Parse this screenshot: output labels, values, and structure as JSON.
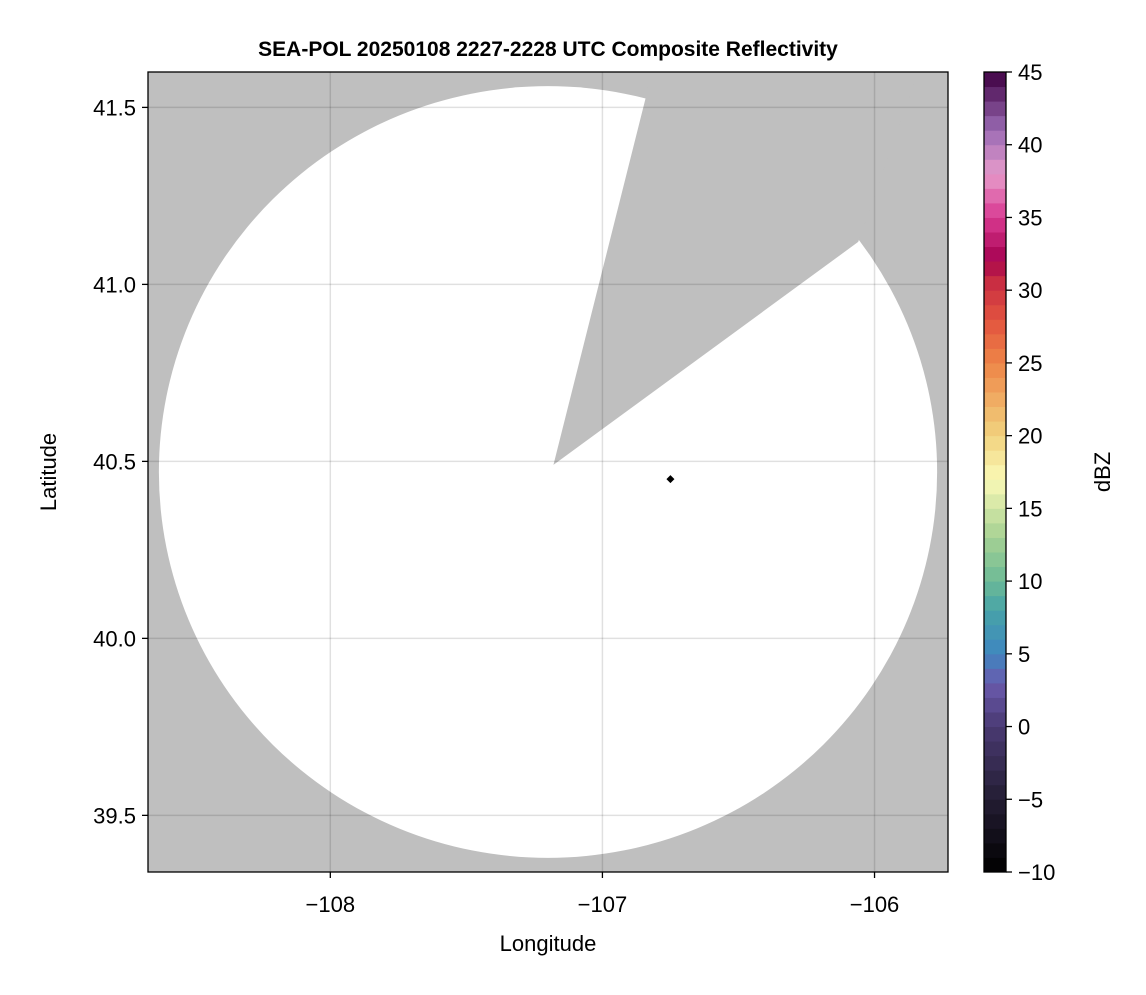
{
  "chart_data": {
    "type": "heatmap",
    "title": "SEA-POL 20250108 2227-2228 UTC Composite Reflectivity",
    "xlabel": "Longitude",
    "ylabel": "Latitude",
    "xlim": [
      -108.67,
      -105.73
    ],
    "ylim": [
      39.34,
      41.6
    ],
    "xticks": [
      -108,
      -107,
      -106
    ],
    "xtick_labels": [
      "−108",
      "−107",
      "−106"
    ],
    "yticks": [
      39.5,
      40.0,
      40.5,
      41.0,
      41.5
    ],
    "ytick_labels": [
      "39.5",
      "40.0",
      "40.5",
      "41.0",
      "41.5"
    ],
    "grid": true,
    "background_color": "#bfbfbf",
    "radar_coverage_color": "#ffffff",
    "radar_coverage": {
      "center_lon": -107.2,
      "center_lat": 40.47,
      "radius_lon": 1.43,
      "radius_lat": 1.09
    },
    "blocked_sector": {
      "apex": [
        -107.18,
        40.49
      ],
      "edge_ends": [
        [
          -106.84,
          41.53
        ],
        [
          -106.06,
          41.12
        ]
      ]
    },
    "marker": {
      "lon": -106.75,
      "lat": 40.45,
      "shape": "diamond",
      "color": "#000000"
    },
    "colorbar": {
      "label": "dBZ",
      "range": [
        -10,
        45
      ],
      "levels": 55,
      "ticks": [
        -10,
        -5,
        0,
        5,
        10,
        15,
        20,
        25,
        30,
        35,
        40,
        45
      ],
      "tick_labels": [
        "−10",
        "−5",
        "0",
        "5",
        "10",
        "15",
        "20",
        "25",
        "30",
        "35",
        "40",
        "45"
      ],
      "colormap_stops": [
        [
          -10,
          "#000000"
        ],
        [
          -5,
          "#231d33"
        ],
        [
          0,
          "#4a3a72"
        ],
        [
          3,
          "#6a5aad"
        ],
        [
          5,
          "#3f86c0"
        ],
        [
          8,
          "#47a3a8"
        ],
        [
          10,
          "#6cba97"
        ],
        [
          13,
          "#a5d193"
        ],
        [
          17,
          "#fbf9b6"
        ],
        [
          20,
          "#f1d37f"
        ],
        [
          25,
          "#ee8547"
        ],
        [
          28,
          "#e2533f"
        ],
        [
          31,
          "#c42742"
        ],
        [
          32,
          "#a4004f"
        ],
        [
          35,
          "#d93991"
        ],
        [
          38,
          "#e69bcb"
        ],
        [
          41,
          "#9b6bb4"
        ],
        [
          45,
          "#3e0042"
        ]
      ]
    }
  }
}
